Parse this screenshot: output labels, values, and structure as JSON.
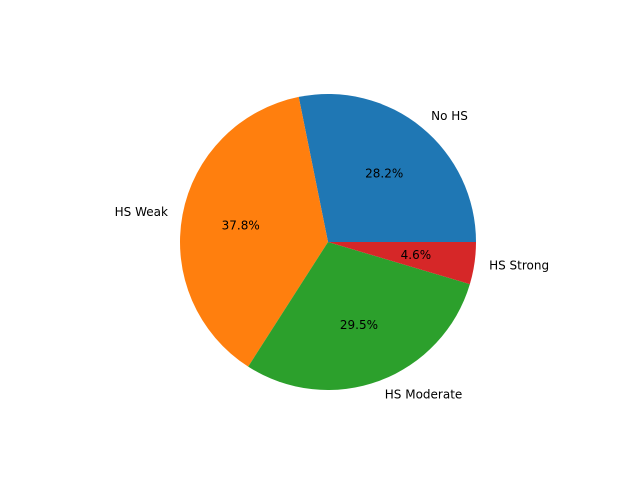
{
  "chart_data": {
    "type": "pie",
    "labels": [
      "No HS",
      "HS Weak",
      "HS Moderate",
      "HS Strong"
    ],
    "values": [
      28.2,
      37.8,
      29.5,
      4.6
    ],
    "percent_labels": [
      "28.2%",
      "37.8%",
      "29.5%",
      "4.6%"
    ],
    "colors": [
      "#1f77b4",
      "#ff7f0e",
      "#2ca02c",
      "#d62728"
    ],
    "start_angle_deg": 0,
    "direction": "counterclockwise",
    "legend": "none"
  }
}
